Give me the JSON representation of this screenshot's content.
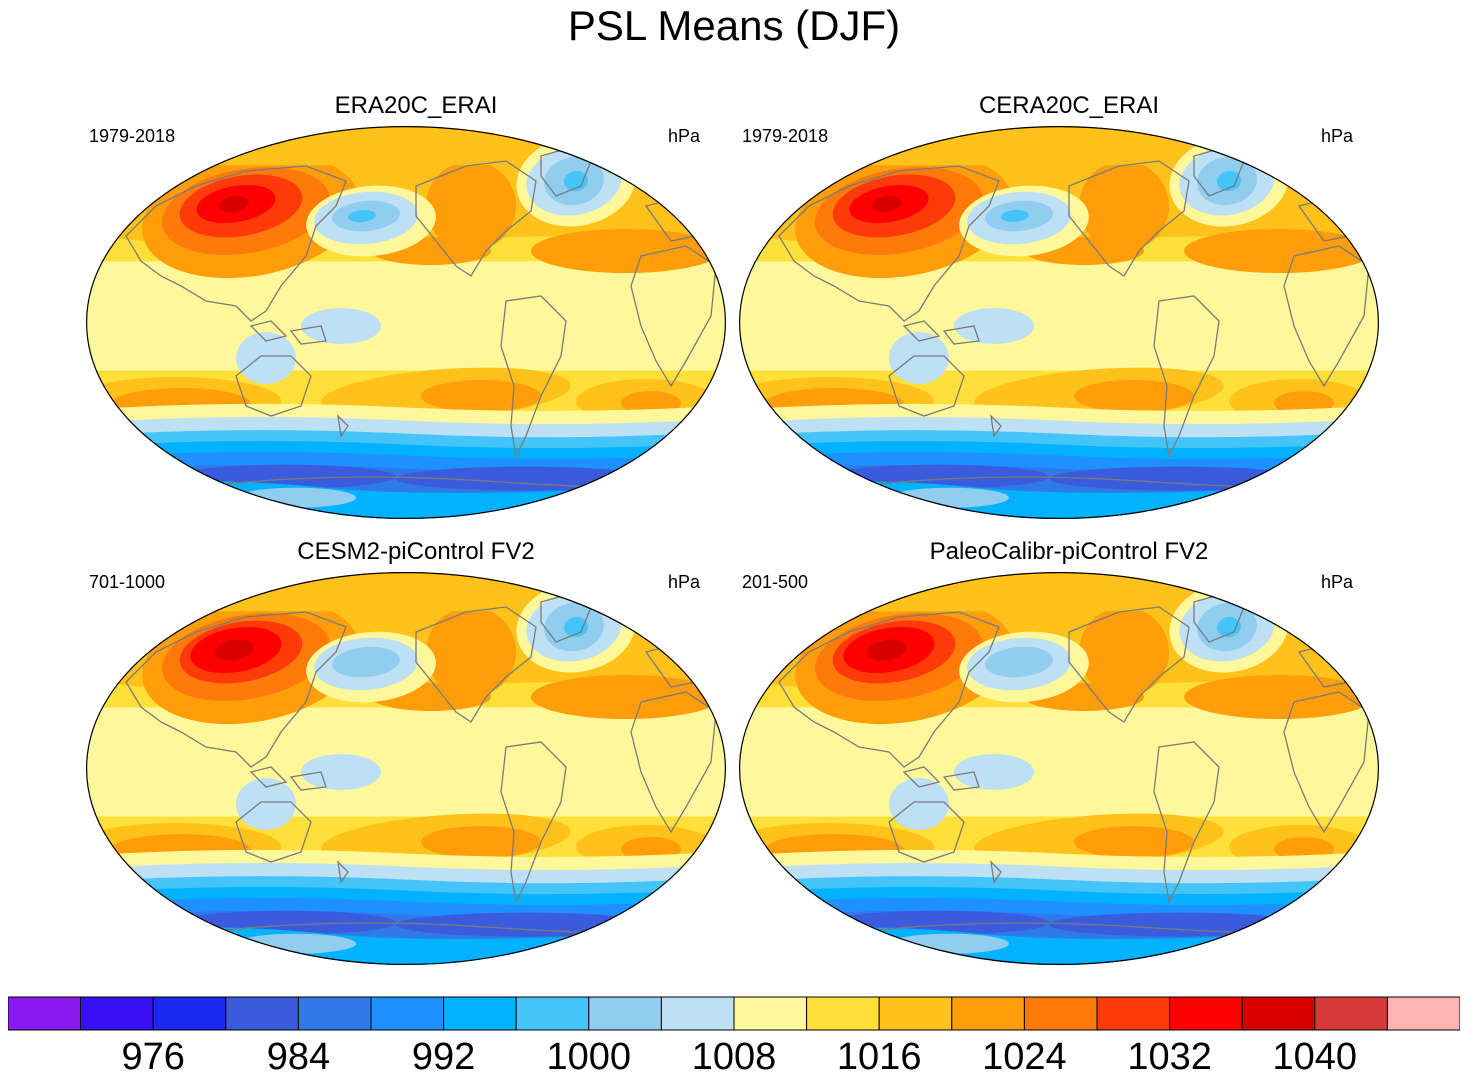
{
  "title": "PSL Means (DJF)",
  "chart_data": {
    "type": "contour_map",
    "title": "PSL Means (DJF)",
    "projection": "Robinson",
    "variable": "PSL",
    "season": "DJF",
    "units": "hPa",
    "panels": [
      {
        "title": "ERA20C_ERAI",
        "period": "1979-2018",
        "units": "hPa"
      },
      {
        "title": "CERA20C_ERAI",
        "period": "1979-2018",
        "units": "hPa"
      },
      {
        "title": "CESM2-piControl FV2",
        "period": "701-1000",
        "units": "hPa"
      },
      {
        "title": "PaleoCalibr-piControl FV2",
        "period": "201-500",
        "units": "hPa"
      }
    ],
    "colorbar": {
      "levels": [
        972,
        976,
        980,
        984,
        988,
        992,
        996,
        1000,
        1004,
        1008,
        1012,
        1016,
        1020,
        1024,
        1028,
        1032,
        1036,
        1040,
        1044
      ],
      "labels": [
        "976",
        "984",
        "992",
        "1000",
        "1008",
        "1016",
        "1024",
        "1032",
        "1040"
      ],
      "colors": [
        "#8a1aef",
        "#3a10f5",
        "#1a28f0",
        "#3a5cdc",
        "#2f7ae8",
        "#1e90ff",
        "#00b2ff",
        "#44c4f8",
        "#90cdee",
        "#bde0f4",
        "#fff89a",
        "#ffe03a",
        "#ffc21a",
        "#ff9e0a",
        "#ff7a0a",
        "#ff3a0a",
        "#ff0000",
        "#d80000",
        "#d83a3a",
        "#ffb4b4"
      ]
    }
  }
}
